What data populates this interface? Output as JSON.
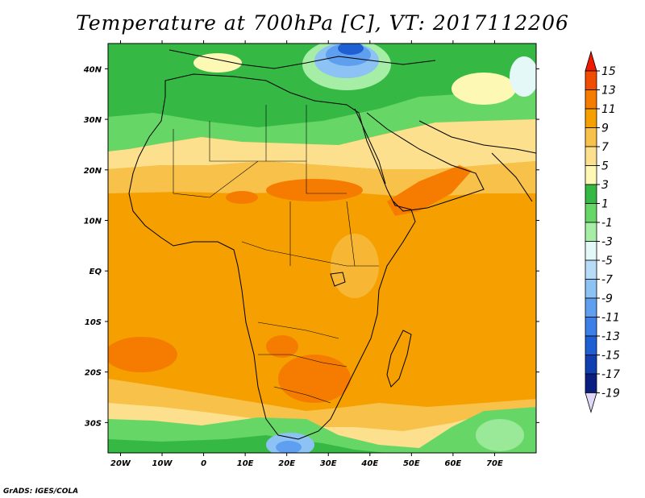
{
  "title": "Temperature at 700hPa [C], VT: 2017112206",
  "credit": "GrADS: IGES/COLA",
  "map": {
    "lon_range": [
      -23,
      80
    ],
    "lat_range": [
      -36,
      45
    ],
    "lat_labels": [
      "40N",
      "30N",
      "20N",
      "10N",
      "EQ",
      "10S",
      "20S",
      "30S"
    ],
    "lat_values": [
      40,
      30,
      20,
      10,
      0,
      -10,
      -20,
      -30
    ],
    "lon_labels": [
      "20W",
      "10W",
      "0",
      "10E",
      "20E",
      "30E",
      "40E",
      "50E",
      "60E",
      "70E"
    ],
    "lon_values": [
      -20,
      -10,
      0,
      10,
      20,
      30,
      40,
      50,
      60,
      70
    ]
  },
  "colorbar": {
    "labels": [
      "15",
      "13",
      "11",
      "9",
      "7",
      "5",
      "3",
      "1",
      "-1",
      "-3",
      "-5",
      "-7",
      "-9",
      "-11",
      "-13",
      "-15",
      "-17",
      "-19"
    ],
    "colors": [
      "#f01a00",
      "#f04d00",
      "#f57c00",
      "#f5a000",
      "#f8c14a",
      "#fce08e",
      "#fdf8b4",
      "#36b845",
      "#66d766",
      "#a6eda6",
      "#e4f8f8",
      "#b8dcf8",
      "#8cc2f4",
      "#5f9fef",
      "#3a80e6",
      "#1f5fd4",
      "#103fb2",
      "#0a1e82",
      "#e0d8f8"
    ]
  }
}
